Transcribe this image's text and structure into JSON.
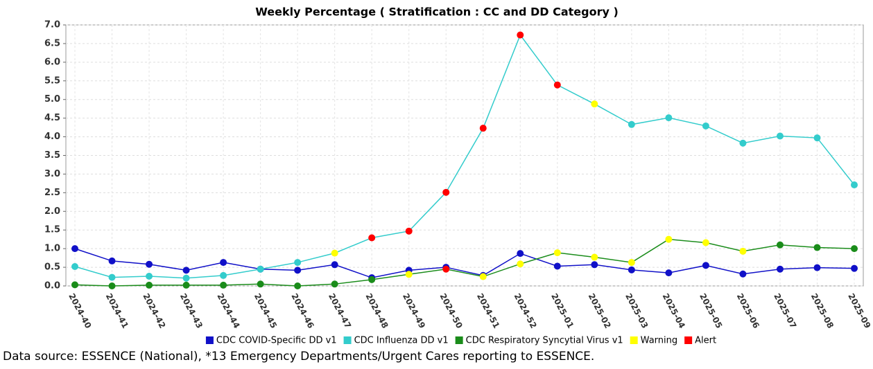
{
  "chart_data": {
    "type": "line",
    "title": "Weekly Percentage ( Stratification : CC and DD Category )",
    "categories": [
      "2024-40",
      "2024-41",
      "2024-42",
      "2024-43",
      "2024-44",
      "2024-45",
      "2024-46",
      "2024-47",
      "2024-48",
      "2024-49",
      "2024-50",
      "2024-51",
      "2024-52",
      "2025-01",
      "2025-02",
      "2025-03",
      "2025-04",
      "2025-05",
      "2025-06",
      "2025-07",
      "2025-08",
      "2025-09"
    ],
    "series": [
      {
        "name": "CDC COVID-Specific DD v1",
        "color": "#1010c8",
        "values": [
          1.0,
          0.67,
          0.58,
          0.42,
          0.63,
          0.45,
          0.42,
          0.57,
          0.22,
          0.42,
          0.5,
          0.28,
          0.87,
          0.53,
          0.57,
          0.43,
          0.35,
          0.55,
          0.32,
          0.45,
          0.49,
          0.47
        ],
        "marker_colors": [
          "#1010c8",
          "#1010c8",
          "#1010c8",
          "#1010c8",
          "#1010c8",
          "#1010c8",
          "#1010c8",
          "#1010c8",
          "#1010c8",
          "#1010c8",
          "#1010c8",
          "#1010c8",
          "#1010c8",
          "#1010c8",
          "#1010c8",
          "#1010c8",
          "#1010c8",
          "#1010c8",
          "#1010c8",
          "#1010c8",
          "#1010c8",
          "#1010c8"
        ]
      },
      {
        "name": "CDC Influenza DD v1",
        "color": "#33cccc",
        "values": [
          0.52,
          0.23,
          0.26,
          0.21,
          0.28,
          0.45,
          0.63,
          0.88,
          1.29,
          1.47,
          2.51,
          4.23,
          6.73,
          5.39,
          4.88,
          4.33,
          4.51,
          4.29,
          3.83,
          4.02,
          3.97,
          2.71
        ],
        "marker_colors": [
          "#33cccc",
          "#33cccc",
          "#33cccc",
          "#33cccc",
          "#33cccc",
          "#33cccc",
          "#33cccc",
          "#ffff00",
          "#ff0000",
          "#ff0000",
          "#ff0000",
          "#ff0000",
          "#ff0000",
          "#ff0000",
          "#ffff00",
          "#33cccc",
          "#33cccc",
          "#33cccc",
          "#33cccc",
          "#33cccc",
          "#33cccc",
          "#33cccc"
        ]
      },
      {
        "name": "CDC Respiratory Syncytial Virus v1",
        "color": "#1a8c1a",
        "values": [
          0.03,
          0.0,
          0.02,
          0.02,
          0.02,
          0.05,
          0.0,
          0.05,
          0.17,
          0.31,
          0.45,
          0.25,
          0.59,
          0.89,
          0.77,
          0.63,
          1.25,
          1.16,
          0.93,
          1.1,
          1.03,
          1.0
        ],
        "marker_colors": [
          "#1a8c1a",
          "#1a8c1a",
          "#1a8c1a",
          "#1a8c1a",
          "#1a8c1a",
          "#1a8c1a",
          "#1a8c1a",
          "#1a8c1a",
          "#1a8c1a",
          "#ffff00",
          "#ff0000",
          "#ffff00",
          "#ffff00",
          "#ffff00",
          "#ffff00",
          "#ffff00",
          "#ffff00",
          "#ffff00",
          "#ffff00",
          "#1a8c1a",
          "#1a8c1a",
          "#1a8c1a"
        ]
      }
    ],
    "legend_extra": [
      {
        "name": "Warning",
        "color": "#ffff00"
      },
      {
        "name": "Alert",
        "color": "#ff0000"
      }
    ],
    "ylim": [
      0,
      7
    ],
    "yticks": [
      {
        "value": 0,
        "label": "0.0"
      },
      0.5,
      {
        "value": 1,
        "label": "1.0"
      },
      1.5,
      {
        "value": 2,
        "label": "2.0"
      },
      2.5,
      {
        "value": 3,
        "label": "3.0"
      },
      3.5,
      {
        "value": 4,
        "label": "4.0"
      },
      4.5,
      {
        "value": 5,
        "label": "5.0"
      },
      5.5,
      {
        "value": 6,
        "label": "6.0"
      },
      6.5,
      {
        "value": 7,
        "label": "7.0"
      }
    ],
    "grid": true,
    "legend": "bottom",
    "footnote": "Data source: ESSENCE (National), *13 Emergency Departments/Urgent Cares reporting to ESSENCE."
  }
}
